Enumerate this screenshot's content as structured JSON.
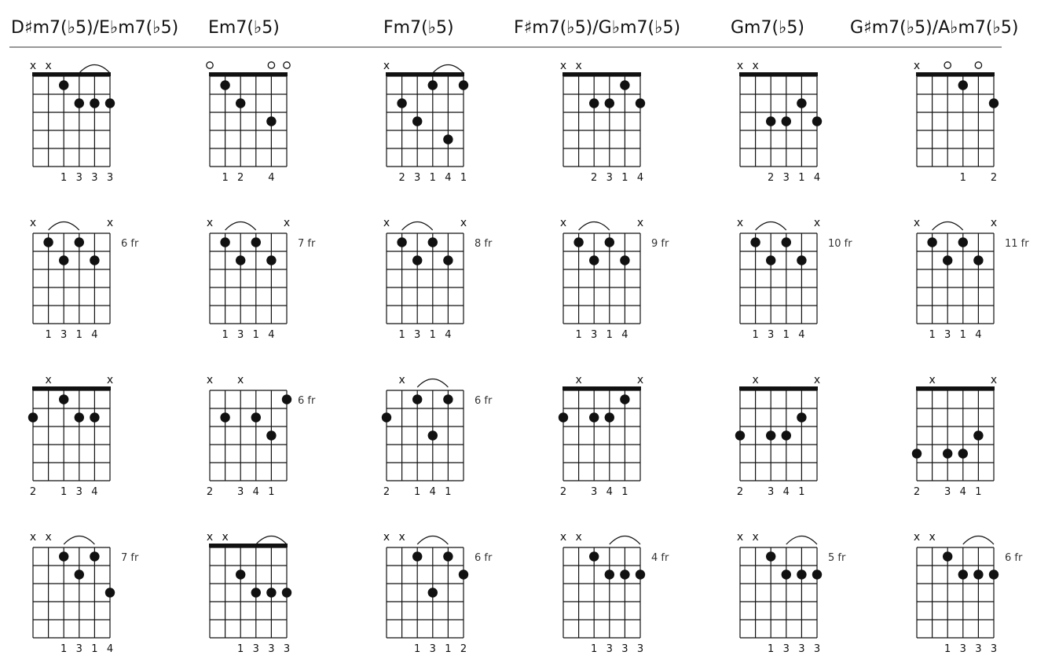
{
  "titles": [
    "D♯m7(♭5)/E♭m7(♭5)",
    "Em7(♭5)",
    "Fm7(♭5)",
    "F♯m7(♭5)/G♭m7(♭5)",
    "Gm7(♭5)",
    "G♯m7(♭5)/A♭m7(♭5)"
  ],
  "glyphs": {
    "muted": "x",
    "open": "○"
  },
  "colors": {
    "ink": "#111111"
  },
  "diagrams": [
    [
      {
        "nut": true,
        "fret_label": "",
        "top": [
          "x",
          "x",
          "",
          "",
          "",
          ""
        ],
        "dots": [
          [
            2,
            1
          ],
          [
            3,
            2
          ],
          [
            4,
            2
          ],
          [
            5,
            2
          ]
        ],
        "arcs": [
          [
            3,
            5
          ]
        ],
        "fingers": [
          "",
          "",
          "1",
          "3",
          "3",
          "3"
        ]
      },
      {
        "nut": true,
        "fret_label": "",
        "top": [
          "o",
          "",
          "",
          "",
          "o",
          "o"
        ],
        "dots": [
          [
            1,
            1
          ],
          [
            2,
            2
          ],
          [
            4,
            3
          ]
        ],
        "arcs": [],
        "fingers": [
          "",
          "1",
          "2",
          "",
          "4",
          ""
        ]
      },
      {
        "nut": true,
        "fret_label": "",
        "top": [
          "x",
          "",
          "",
          "",
          "",
          ""
        ],
        "dots": [
          [
            1,
            2
          ],
          [
            2,
            3
          ],
          [
            3,
            1
          ],
          [
            4,
            4
          ],
          [
            5,
            1
          ]
        ],
        "arcs": [
          [
            3,
            5
          ]
        ],
        "fingers": [
          "",
          "2",
          "3",
          "1",
          "4",
          "1"
        ]
      },
      {
        "nut": true,
        "fret_label": "",
        "top": [
          "x",
          "x",
          "",
          "",
          "",
          ""
        ],
        "dots": [
          [
            2,
            2
          ],
          [
            3,
            2
          ],
          [
            4,
            1
          ],
          [
            5,
            2
          ]
        ],
        "arcs": [],
        "fingers": [
          "",
          "",
          "2",
          "3",
          "1",
          "4"
        ]
      },
      {
        "nut": true,
        "fret_label": "",
        "top": [
          "x",
          "x",
          "",
          "",
          "",
          ""
        ],
        "dots": [
          [
            2,
            3
          ],
          [
            3,
            3
          ],
          [
            4,
            2
          ],
          [
            5,
            3
          ]
        ],
        "arcs": [],
        "fingers": [
          "",
          "",
          "2",
          "3",
          "1",
          "4"
        ]
      },
      {
        "nut": true,
        "fret_label": "",
        "top": [
          "x",
          "",
          "o",
          "",
          "o",
          ""
        ],
        "dots": [
          [
            3,
            1
          ],
          [
            5,
            2
          ]
        ],
        "arcs": [],
        "fingers": [
          "",
          "",
          "",
          "1",
          "",
          "2"
        ]
      }
    ],
    [
      {
        "nut": false,
        "fret_label": "6 fr",
        "top": [
          "x",
          "",
          "",
          "",
          "",
          "x"
        ],
        "dots": [
          [
            1,
            1
          ],
          [
            2,
            2
          ],
          [
            3,
            1
          ],
          [
            4,
            2
          ]
        ],
        "arcs": [
          [
            1,
            3
          ]
        ],
        "fingers": [
          "",
          "1",
          "3",
          "1",
          "4",
          ""
        ]
      },
      {
        "nut": false,
        "fret_label": "7 fr",
        "top": [
          "x",
          "",
          "",
          "",
          "",
          "x"
        ],
        "dots": [
          [
            1,
            1
          ],
          [
            2,
            2
          ],
          [
            3,
            1
          ],
          [
            4,
            2
          ]
        ],
        "arcs": [
          [
            1,
            3
          ]
        ],
        "fingers": [
          "",
          "1",
          "3",
          "1",
          "4",
          ""
        ]
      },
      {
        "nut": false,
        "fret_label": "8 fr",
        "top": [
          "x",
          "",
          "",
          "",
          "",
          "x"
        ],
        "dots": [
          [
            1,
            1
          ],
          [
            2,
            2
          ],
          [
            3,
            1
          ],
          [
            4,
            2
          ]
        ],
        "arcs": [
          [
            1,
            3
          ]
        ],
        "fingers": [
          "",
          "1",
          "3",
          "1",
          "4",
          ""
        ]
      },
      {
        "nut": false,
        "fret_label": "9 fr",
        "top": [
          "x",
          "",
          "",
          "",
          "",
          "x"
        ],
        "dots": [
          [
            1,
            1
          ],
          [
            2,
            2
          ],
          [
            3,
            1
          ],
          [
            4,
            2
          ]
        ],
        "arcs": [
          [
            1,
            3
          ]
        ],
        "fingers": [
          "",
          "1",
          "3",
          "1",
          "4",
          ""
        ]
      },
      {
        "nut": false,
        "fret_label": "10 fr",
        "top": [
          "x",
          "",
          "",
          "",
          "",
          "x"
        ],
        "dots": [
          [
            1,
            1
          ],
          [
            2,
            2
          ],
          [
            3,
            1
          ],
          [
            4,
            2
          ]
        ],
        "arcs": [
          [
            1,
            3
          ]
        ],
        "fingers": [
          "",
          "1",
          "3",
          "1",
          "4",
          ""
        ]
      },
      {
        "nut": false,
        "fret_label": "11 fr",
        "top": [
          "x",
          "",
          "",
          "",
          "",
          "x"
        ],
        "dots": [
          [
            1,
            1
          ],
          [
            2,
            2
          ],
          [
            3,
            1
          ],
          [
            4,
            2
          ]
        ],
        "arcs": [
          [
            1,
            3
          ]
        ],
        "fingers": [
          "",
          "1",
          "3",
          "1",
          "4",
          ""
        ]
      }
    ],
    [
      {
        "nut": true,
        "fret_label": "",
        "top": [
          "",
          "x",
          "",
          "",
          "",
          "x"
        ],
        "dots": [
          [
            0,
            2
          ],
          [
            2,
            1
          ],
          [
            3,
            2
          ],
          [
            4,
            2
          ]
        ],
        "arcs": [],
        "fingers": [
          "2",
          "",
          "1",
          "3",
          "4",
          ""
        ]
      },
      {
        "nut": false,
        "fret_label": "6 fr",
        "top": [
          "x",
          "",
          "x",
          "",
          "",
          ""
        ],
        "dots": [
          [
            1,
            2
          ],
          [
            3,
            2
          ],
          [
            4,
            3
          ],
          [
            5,
            1
          ]
        ],
        "arcs": [],
        "fingers": [
          "2",
          "",
          "3",
          "4",
          "1",
          ""
        ]
      },
      {
        "nut": false,
        "fret_label": "6 fr",
        "top": [
          "",
          "x",
          "",
          "",
          "",
          ""
        ],
        "dots": [
          [
            0,
            2
          ],
          [
            2,
            1
          ],
          [
            3,
            3
          ],
          [
            4,
            1
          ]
        ],
        "arcs": [
          [
            2,
            4
          ]
        ],
        "fingers": [
          "2",
          "",
          "1",
          "4",
          "1",
          ""
        ]
      },
      {
        "nut": true,
        "fret_label": "",
        "top": [
          "",
          "x",
          "",
          "",
          "",
          "x"
        ],
        "dots": [
          [
            0,
            2
          ],
          [
            2,
            2
          ],
          [
            3,
            2
          ],
          [
            4,
            1
          ]
        ],
        "arcs": [],
        "fingers": [
          "2",
          "",
          "3",
          "4",
          "1",
          ""
        ]
      },
      {
        "nut": true,
        "fret_label": "",
        "top": [
          "",
          "x",
          "",
          "",
          "",
          "x"
        ],
        "dots": [
          [
            0,
            3
          ],
          [
            2,
            3
          ],
          [
            3,
            3
          ],
          [
            4,
            2
          ]
        ],
        "arcs": [],
        "fingers": [
          "2",
          "",
          "3",
          "4",
          "1",
          ""
        ]
      },
      {
        "nut": true,
        "fret_label": "",
        "top": [
          "",
          "x",
          "",
          "",
          "",
          "x"
        ],
        "dots": [
          [
            0,
            4
          ],
          [
            2,
            4
          ],
          [
            3,
            4
          ],
          [
            4,
            3
          ]
        ],
        "arcs": [],
        "fingers": [
          "2",
          "",
          "3",
          "4",
          "1",
          ""
        ]
      }
    ],
    [
      {
        "nut": false,
        "fret_label": "7 fr",
        "top": [
          "x",
          "x",
          "",
          "",
          "",
          ""
        ],
        "dots": [
          [
            2,
            1
          ],
          [
            3,
            2
          ],
          [
            4,
            1
          ],
          [
            5,
            3
          ]
        ],
        "arcs": [
          [
            2,
            4
          ]
        ],
        "fingers": [
          "",
          "",
          "1",
          "3",
          "1",
          "4"
        ]
      },
      {
        "nut": true,
        "fret_label": "",
        "top": [
          "x",
          "x",
          "",
          "",
          "",
          ""
        ],
        "dots": [
          [
            2,
            2
          ],
          [
            3,
            3
          ],
          [
            4,
            3
          ],
          [
            5,
            3
          ]
        ],
        "arcs": [
          [
            3,
            5
          ]
        ],
        "fingers": [
          "",
          "",
          "1",
          "3",
          "3",
          "3"
        ]
      },
      {
        "nut": false,
        "fret_label": "6 fr",
        "top": [
          "x",
          "x",
          "",
          "",
          "",
          ""
        ],
        "dots": [
          [
            2,
            1
          ],
          [
            3,
            3
          ],
          [
            4,
            1
          ],
          [
            5,
            2
          ]
        ],
        "arcs": [
          [
            2,
            4
          ]
        ],
        "fingers": [
          "",
          "",
          "1",
          "3",
          "1",
          "2"
        ]
      },
      {
        "nut": false,
        "fret_label": "4 fr",
        "top": [
          "x",
          "x",
          "",
          "",
          "",
          ""
        ],
        "dots": [
          [
            2,
            1
          ],
          [
            3,
            2
          ],
          [
            4,
            2
          ],
          [
            5,
            2
          ]
        ],
        "arcs": [
          [
            3,
            5
          ]
        ],
        "fingers": [
          "",
          "",
          "1",
          "3",
          "3",
          "3"
        ]
      },
      {
        "nut": false,
        "fret_label": "5 fr",
        "top": [
          "x",
          "x",
          "",
          "",
          "",
          ""
        ],
        "dots": [
          [
            2,
            1
          ],
          [
            3,
            2
          ],
          [
            4,
            2
          ],
          [
            5,
            2
          ]
        ],
        "arcs": [
          [
            3,
            5
          ]
        ],
        "fingers": [
          "",
          "",
          "1",
          "3",
          "3",
          "3"
        ]
      },
      {
        "nut": false,
        "fret_label": "6 fr",
        "top": [
          "x",
          "x",
          "",
          "",
          "",
          ""
        ],
        "dots": [
          [
            2,
            1
          ],
          [
            3,
            2
          ],
          [
            4,
            2
          ],
          [
            5,
            2
          ]
        ],
        "arcs": [
          [
            3,
            5
          ]
        ],
        "fingers": [
          "",
          "",
          "1",
          "3",
          "3",
          "3"
        ]
      }
    ]
  ]
}
